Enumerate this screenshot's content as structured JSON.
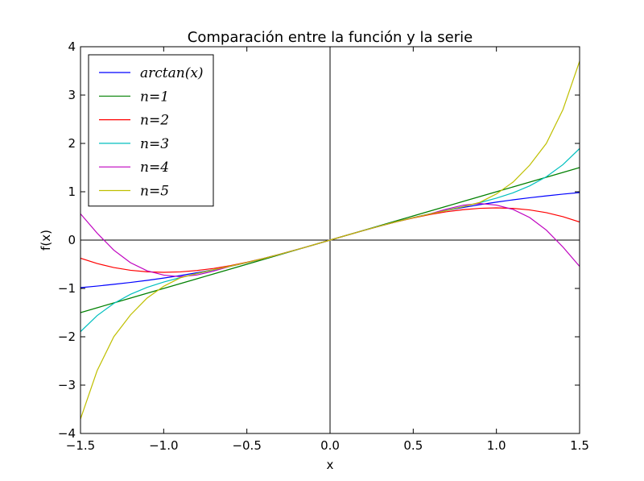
{
  "chart_data": {
    "type": "line",
    "title": "Comparación entre la función y la serie",
    "xlabel": "x",
    "ylabel": "f(x)",
    "xlim": [
      -1.5,
      1.5
    ],
    "ylim": [
      -4,
      4
    ],
    "x_ticks": [
      -1.5,
      -1.0,
      -0.5,
      0.0,
      0.5,
      1.0,
      1.5
    ],
    "x_tick_labels": [
      "−1.5",
      "−1.0",
      "−0.5",
      "0.0",
      "0.5",
      "1.0",
      "1.5"
    ],
    "y_ticks": [
      -4,
      -3,
      -2,
      -1,
      0,
      1,
      2,
      3,
      4
    ],
    "y_tick_labels": [
      "−4",
      "−3",
      "−2",
      "−1",
      "0",
      "1",
      "2",
      "3",
      "4"
    ],
    "grid": false,
    "legend_position": "top-left",
    "reference_lines": [
      "x = 0",
      "y = 0"
    ],
    "x": [
      -1.5,
      -1.4,
      -1.3,
      -1.2,
      -1.1,
      -1.0,
      -0.9,
      -0.8,
      -0.7,
      -0.6,
      -0.5,
      -0.4,
      -0.3,
      -0.2,
      -0.1,
      0.0,
      0.1,
      0.2,
      0.3,
      0.4,
      0.5,
      0.6,
      0.7,
      0.8,
      0.9,
      1.0,
      1.1,
      1.2,
      1.3,
      1.4,
      1.5
    ],
    "series": [
      {
        "name": "arctan(x)",
        "color": "#0000ff",
        "values": [
          -0.983,
          -0.951,
          -0.915,
          -0.876,
          -0.833,
          -0.785,
          -0.733,
          -0.675,
          -0.611,
          -0.54,
          -0.464,
          -0.381,
          -0.291,
          -0.197,
          -0.1,
          0.0,
          0.1,
          0.197,
          0.291,
          0.381,
          0.464,
          0.54,
          0.611,
          0.675,
          0.733,
          0.785,
          0.833,
          0.876,
          0.915,
          0.951,
          0.983
        ]
      },
      {
        "name": "n=1",
        "color": "#008000",
        "values": [
          -1.5,
          -1.4,
          -1.3,
          -1.2,
          -1.1,
          -1.0,
          -0.9,
          -0.8,
          -0.7,
          -0.6,
          -0.5,
          -0.4,
          -0.3,
          -0.2,
          -0.1,
          0.0,
          0.1,
          0.2,
          0.3,
          0.4,
          0.5,
          0.6,
          0.7,
          0.8,
          0.9,
          1.0,
          1.1,
          1.2,
          1.3,
          1.4,
          1.5
        ]
      },
      {
        "name": "n=2",
        "color": "#ff0000",
        "values": [
          -0.375,
          -0.485,
          -0.568,
          -0.624,
          -0.656,
          -0.667,
          -0.657,
          -0.629,
          -0.586,
          -0.528,
          -0.458,
          -0.379,
          -0.291,
          -0.197,
          -0.1,
          0.0,
          0.1,
          0.197,
          0.291,
          0.379,
          0.458,
          0.528,
          0.586,
          0.629,
          0.657,
          0.667,
          0.656,
          0.624,
          0.568,
          0.485,
          0.375
        ]
      },
      {
        "name": "n=3",
        "color": "#00bfbf",
        "values": [
          -1.894,
          -1.561,
          -1.311,
          -1.122,
          -0.978,
          -0.867,
          -0.775,
          -0.694,
          -0.619,
          -0.544,
          -0.465,
          -0.381,
          -0.292,
          -0.197,
          -0.1,
          0.0,
          0.1,
          0.197,
          0.292,
          0.381,
          0.465,
          0.544,
          0.619,
          0.694,
          0.775,
          0.867,
          0.978,
          1.122,
          1.311,
          1.561,
          1.894
        ]
      },
      {
        "name": "n=4",
        "color": "#bf00bf",
        "values": [
          0.544,
          0.144,
          -0.207,
          -0.467,
          -0.634,
          -0.724,
          -0.757,
          -0.722,
          -0.64,
          -0.542,
          -0.465,
          -0.381,
          -0.291,
          -0.197,
          -0.1,
          0.0,
          0.1,
          0.197,
          0.291,
          0.381,
          0.465,
          0.542,
          0.64,
          0.722,
          0.757,
          0.724,
          0.634,
          0.467,
          0.207,
          -0.144,
          -0.544
        ]
      },
      {
        "name": "n=5",
        "color": "#bfbf00",
        "values": [
          -3.7,
          -2.7,
          -2.0,
          -1.55,
          -1.2,
          -0.955,
          -0.78,
          -0.69,
          -0.611,
          -0.54,
          -0.464,
          -0.381,
          -0.291,
          -0.197,
          -0.1,
          0.0,
          0.1,
          0.197,
          0.291,
          0.381,
          0.464,
          0.54,
          0.611,
          0.69,
          0.78,
          0.955,
          1.2,
          1.55,
          2.0,
          2.7,
          3.7
        ]
      }
    ]
  }
}
